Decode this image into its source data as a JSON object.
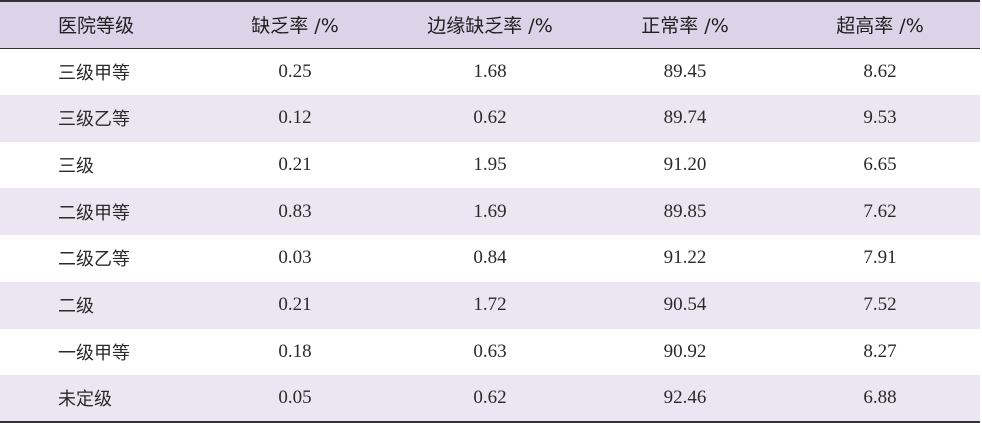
{
  "table": {
    "headers": [
      "医院等级",
      "缺乏率 /%",
      "边缘缺乏率 /%",
      "正常率 /%",
      "超高率 /%"
    ],
    "rows": [
      [
        "三级甲等",
        "0.25",
        "1.68",
        "89.45",
        "8.62"
      ],
      [
        "三级乙等",
        "0.12",
        "0.62",
        "89.74",
        "9.53"
      ],
      [
        "三级",
        "0.21",
        "1.95",
        "91.20",
        "6.65"
      ],
      [
        "二级甲等",
        "0.83",
        "1.69",
        "89.85",
        "7.62"
      ],
      [
        "二级乙等",
        "0.03",
        "0.84",
        "91.22",
        "7.91"
      ],
      [
        "二级",
        "0.21",
        "1.72",
        "90.54",
        "7.52"
      ],
      [
        "一级甲等",
        "0.18",
        "0.63",
        "90.92",
        "8.27"
      ],
      [
        "未定级",
        "0.05",
        "0.62",
        "92.46",
        "6.88"
      ]
    ]
  },
  "colors": {
    "header_bg": "#dcd3e8",
    "alt_row_bg": "#ece6f2",
    "rule": "#333333"
  }
}
